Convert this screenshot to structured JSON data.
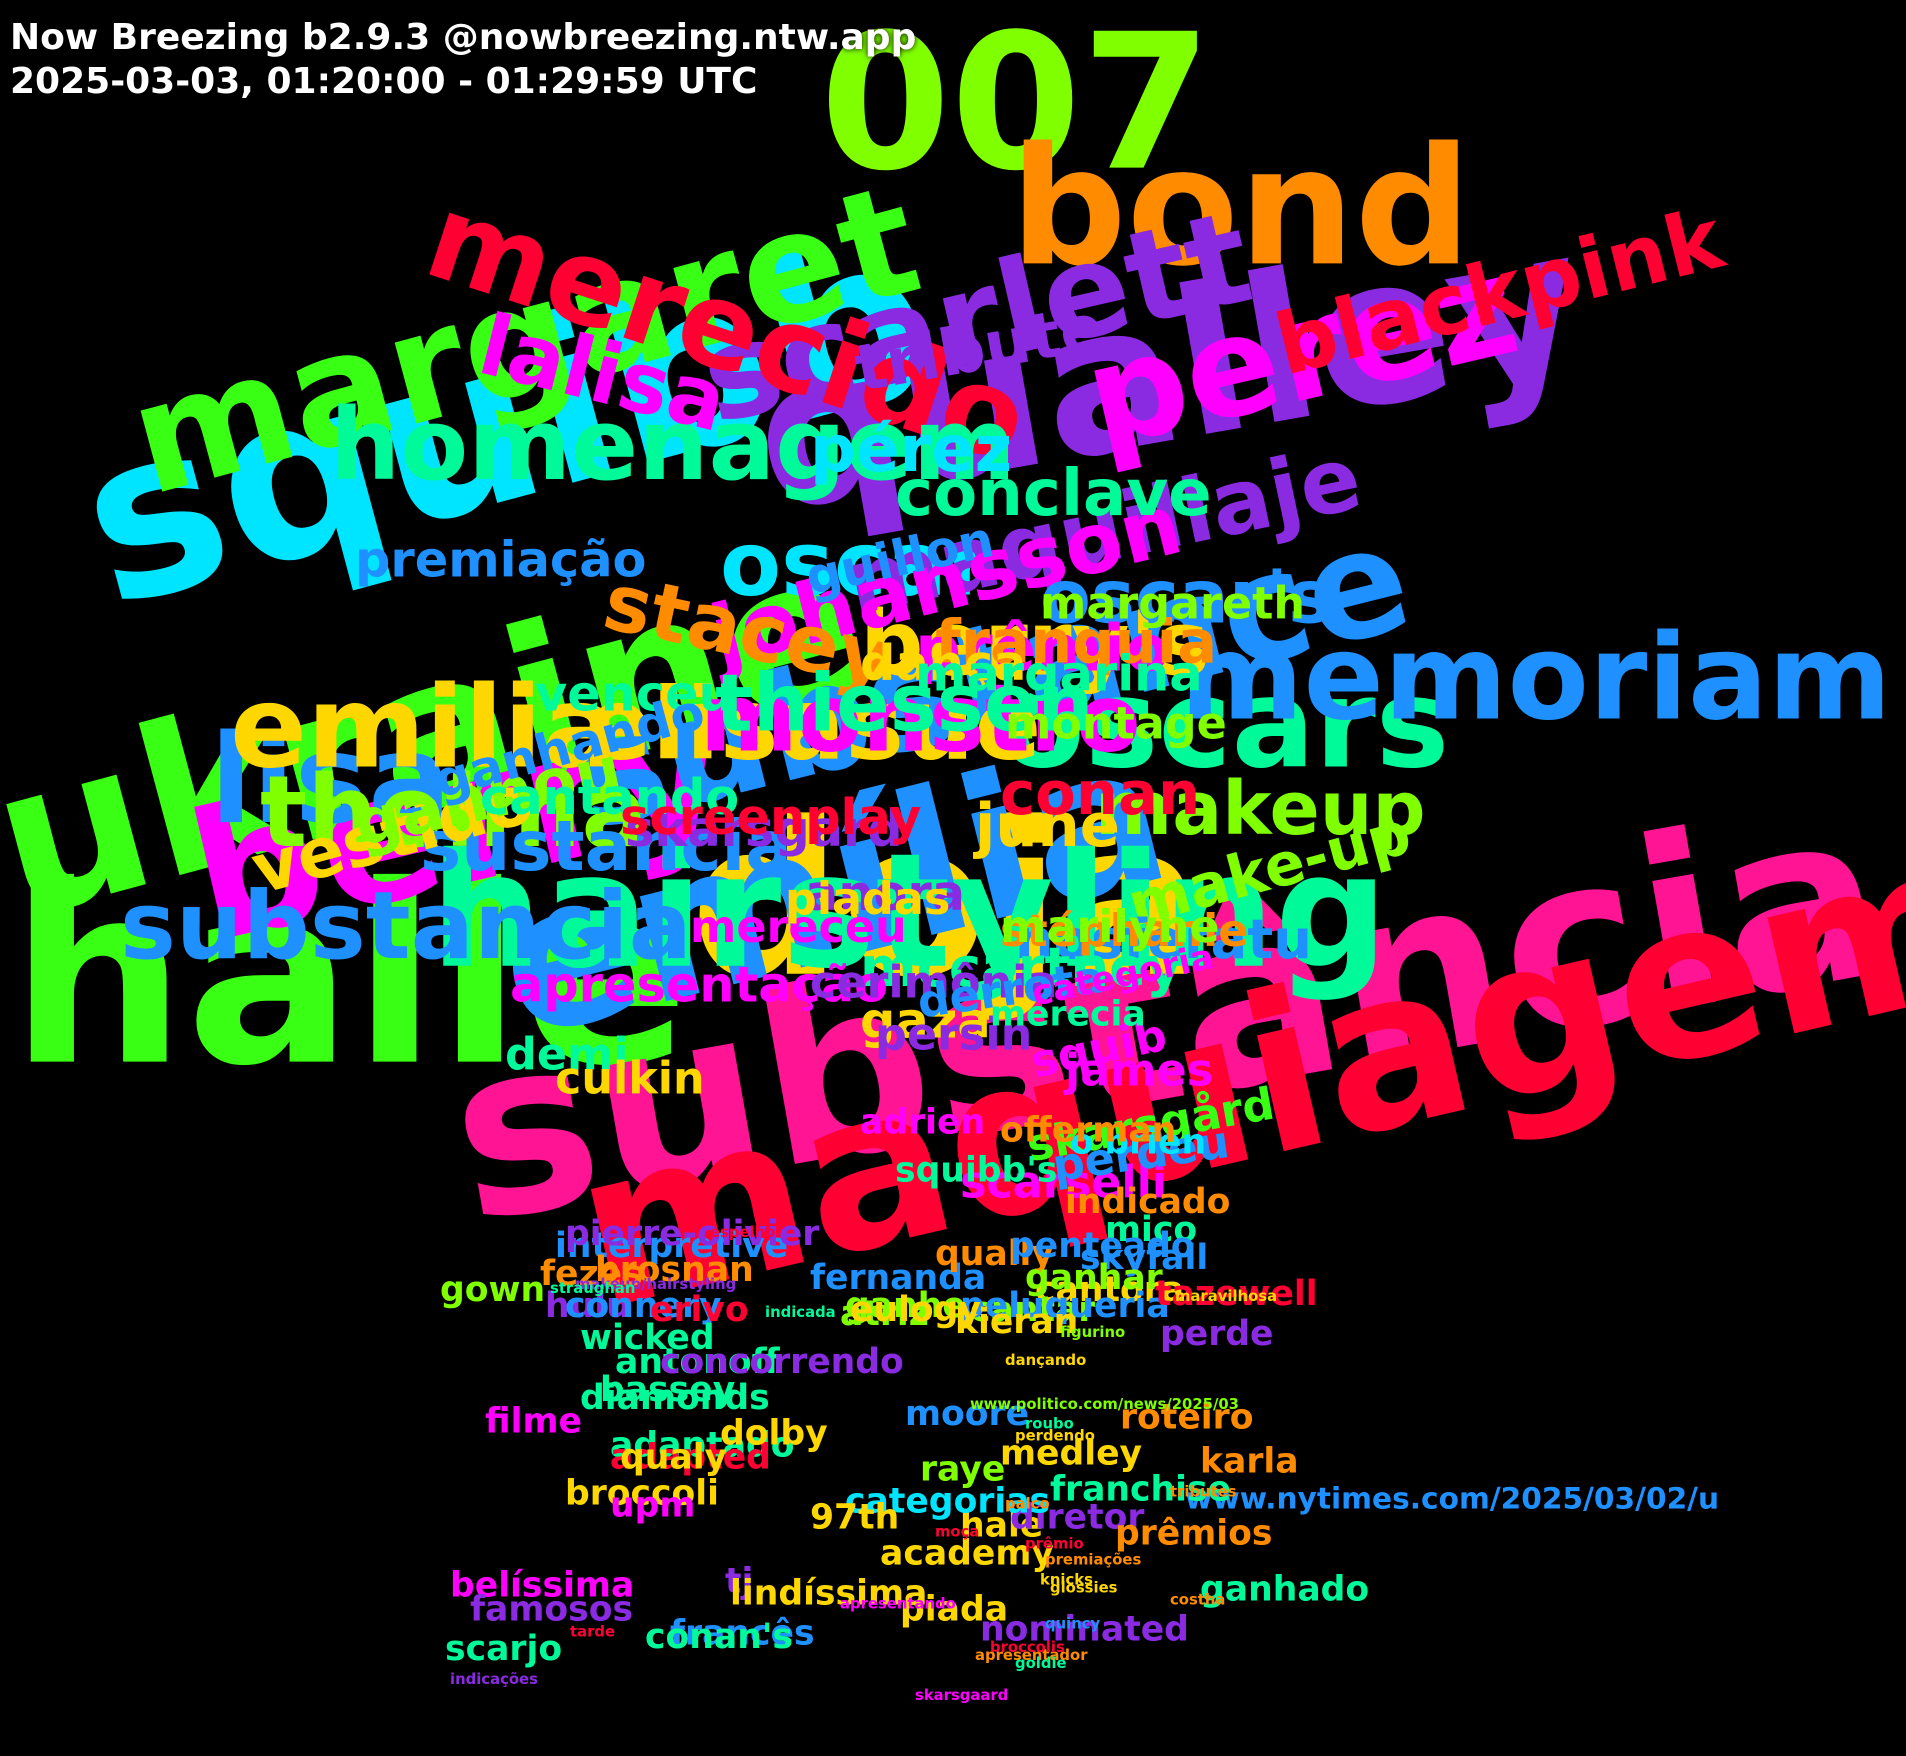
{
  "header": {
    "title": "Now Breezing b2.9.3 @nowbreezing.ntw.app",
    "subtitle": "2025-03-03, 01:20:00 - 01:29:59 UTC"
  },
  "palette": [
    "#39ff14",
    "#00e5ff",
    "#ff1493",
    "#8a2be2",
    "#ff8c00",
    "#ffd700",
    "#00fa9a",
    "#ff0033",
    "#1e90ff",
    "#ff00ff",
    "#7fff00",
    "#20b2aa"
  ],
  "words": [
    {
      "text": "halle",
      "color": "#39ff14",
      "weight": 100
    },
    {
      "text": "substância",
      "color": "#ff1493",
      "weight": 96
    },
    {
      "text": "squibb",
      "color": "#00e5ff",
      "weight": 92
    },
    {
      "text": "maquiagem",
      "color": "#ff0033",
      "weight": 88
    },
    {
      "text": "doja",
      "color": "#ffd700",
      "weight": 86
    },
    {
      "text": "ukraine",
      "color": "#39ff14",
      "weight": 84
    },
    {
      "text": "qualley",
      "color": "#8a2be2",
      "weight": 82
    },
    {
      "text": "emília",
      "color": "#1e90ff",
      "weight": 80
    },
    {
      "text": "007",
      "color": "#7fff00",
      "weight": 76
    },
    {
      "text": "berry",
      "color": "#ff00ff",
      "weight": 72
    },
    {
      "text": "bond",
      "color": "#ff8c00",
      "weight": 66
    },
    {
      "text": "hairstyling",
      "color": "#00fa9a",
      "weight": 64
    },
    {
      "text": "margaret",
      "color": "#39ff14",
      "weight": 62
    },
    {
      "text": "substance",
      "color": "#1e90ff",
      "weight": 60
    },
    {
      "text": "perez",
      "color": "#ff00ff",
      "weight": 56
    },
    {
      "text": "scarlett",
      "color": "#8a2be2",
      "weight": 52
    },
    {
      "text": "lisa",
      "color": "#1e90ff",
      "weight": 50
    },
    {
      "text": "oscars",
      "color": "#00fa9a",
      "weight": 50
    },
    {
      "text": "merecido",
      "color": "#ff0033",
      "weight": 48
    },
    {
      "text": "memoriam",
      "color": "#1e90ff",
      "weight": 48
    },
    {
      "text": "emilia",
      "color": "#ffd700",
      "weight": 46
    },
    {
      "text": "homenagem",
      "color": "#00fa9a",
      "weight": 40
    },
    {
      "text": "elisasue",
      "color": "#ffd700",
      "weight": 40
    },
    {
      "text": "thelma",
      "color": "#7fff00",
      "weight": 40
    },
    {
      "text": "monstro",
      "color": "#ff00ff",
      "weight": 38
    },
    {
      "text": "substancia",
      "color": "#1e90ff",
      "weight": 38
    },
    {
      "text": "berry's",
      "color": "#ffd700",
      "weight": 36
    },
    {
      "text": "oscar",
      "color": "#00e5ff",
      "weight": 36
    },
    {
      "text": "maquillaje",
      "color": "#8a2be2",
      "weight": 36
    },
    {
      "text": "blackpink",
      "color": "#ff0033",
      "weight": 34
    },
    {
      "text": "lalisa",
      "color": "#ff00ff",
      "weight": 34
    },
    {
      "text": "johansson",
      "color": "#ff00ff",
      "weight": 34
    },
    {
      "text": "stacey",
      "color": "#ff8c00",
      "weight": 32
    },
    {
      "text": "thiessen",
      "color": "#00fa9a",
      "weight": 32
    },
    {
      "text": "oscar's",
      "color": "#1e90ff",
      "weight": 30
    },
    {
      "text": "makeup",
      "color": "#7fff00",
      "weight": 30
    },
    {
      "text": "sustancia",
      "color": "#1e90ff",
      "weight": 28
    },
    {
      "text": "vestido",
      "color": "#ffd700",
      "weight": 28
    },
    {
      "text": "tribute",
      "color": "#8a2be2",
      "weight": 26
    },
    {
      "text": "pérez",
      "color": "#00e5ff",
      "weight": 26
    },
    {
      "text": "conclave",
      "color": "#00fa9a",
      "weight": 26
    },
    {
      "text": "prêmio",
      "color": "#ff00ff",
      "weight": 26
    },
    {
      "text": "ganhou",
      "color": "#7fff00",
      "weight": 26
    },
    {
      "text": "franquia",
      "color": "#ff8c00",
      "weight": 24
    },
    {
      "text": "june",
      "color": "#ffd700",
      "weight": 24
    },
    {
      "text": "make-up",
      "color": "#7fff00",
      "weight": 24
    },
    {
      "text": "conan",
      "color": "#ff0033",
      "weight": 24
    },
    {
      "text": "nosferatu",
      "color": "#1e90ff",
      "weight": 22
    },
    {
      "text": "mccartney",
      "color": "#00fa9a",
      "weight": 22
    },
    {
      "text": "anora",
      "color": "#8a2be2",
      "weight": 20
    },
    {
      "text": "premiação",
      "color": "#1e90ff",
      "weight": 20
    },
    {
      "text": "guillon",
      "color": "#1e90ff",
      "weight": 20
    },
    {
      "text": "dança",
      "color": "#ffd700",
      "weight": 20
    },
    {
      "text": "margarina",
      "color": "#00fa9a",
      "weight": 20
    },
    {
      "text": "venceu",
      "color": "#00fa9a",
      "weight": 20
    },
    {
      "text": "ganhando",
      "color": "#1e90ff",
      "weight": 20
    },
    {
      "text": "skarsgard",
      "color": "#8a2be2",
      "weight": 20
    },
    {
      "text": "gaza",
      "color": "#ffd700",
      "weight": 20
    },
    {
      "text": "cantando",
      "color": "#00fa9a",
      "weight": 20
    },
    {
      "text": "screenplay",
      "color": "#ff0033",
      "weight": 20
    },
    {
      "text": "apresentação",
      "color": "#ff00ff",
      "weight": 20
    },
    {
      "text": "squib",
      "color": "#ff00ff",
      "weight": 18
    },
    {
      "text": "margareth",
      "color": "#7fff00",
      "weight": 18
    },
    {
      "text": "montage",
      "color": "#7fff00",
      "weight": 18
    },
    {
      "text": "stéphanie",
      "color": "#ff8c00",
      "weight": 18
    },
    {
      "text": "skarsgård",
      "color": "#39ff14",
      "weight": 18
    },
    {
      "text": "mereceu",
      "color": "#ff00ff",
      "weight": 18
    },
    {
      "text": "scarselli",
      "color": "#ff00ff",
      "weight": 18
    },
    {
      "text": "cerimônia",
      "color": "#8a2be2",
      "weight": 18
    },
    {
      "text": "piadas",
      "color": "#ffd700",
      "weight": 18
    },
    {
      "text": "persin",
      "color": "#8a2be2",
      "weight": 18
    },
    {
      "text": "derrota",
      "color": "#1e90ff",
      "weight": 18
    },
    {
      "text": "marilyne",
      "color": "#7fff00",
      "weight": 18
    },
    {
      "text": "demi",
      "color": "#00fa9a",
      "weight": 18
    },
    {
      "text": "perdeu",
      "color": "#1e90ff",
      "weight": 18
    },
    {
      "text": "james",
      "color": "#ff00ff",
      "weight": 18
    },
    {
      "text": "culkin",
      "color": "#ffd700",
      "weight": 18
    },
    {
      "text": "squibb's",
      "color": "#00fa9a",
      "weight": 14
    },
    {
      "text": "o'brien",
      "color": "#00e5ff",
      "weight": 14
    },
    {
      "text": "fernanda",
      "color": "#1e90ff",
      "weight": 14
    },
    {
      "text": "categoria",
      "color": "#ff00ff",
      "weight": 14
    },
    {
      "text": "mico",
      "color": "#00fa9a",
      "weight": 14
    },
    {
      "text": "merecia",
      "color": "#00fa9a",
      "weight": 14
    },
    {
      "text": "gown",
      "color": "#7fff00",
      "weight": 14
    },
    {
      "text": "interpretive",
      "color": "#1e90ff",
      "weight": 14
    },
    {
      "text": "pierre-olivier",
      "color": "#8a2be2",
      "weight": 14
    },
    {
      "text": "fezes",
      "color": "#ff8c00",
      "weight": 14
    },
    {
      "text": "hulu",
      "color": "#8a2be2",
      "weight": 14
    },
    {
      "text": "adrien",
      "color": "#ff00ff",
      "weight": 14
    },
    {
      "text": "qually",
      "color": "#ff8c00",
      "weight": 14
    },
    {
      "text": "penteado",
      "color": "#1e90ff",
      "weight": 14
    },
    {
      "text": "offerman",
      "color": "#ff8c00",
      "weight": 14
    },
    {
      "text": "perde",
      "color": "#8a2be2",
      "weight": 14
    },
    {
      "text": "indicado",
      "color": "#ff8c00",
      "weight": 14
    },
    {
      "text": "cantora",
      "color": "#ffd700",
      "weight": 14
    },
    {
      "text": "connery",
      "color": "#1e90ff",
      "weight": 14
    },
    {
      "text": "erivo",
      "color": "#ff0033",
      "weight": 14
    },
    {
      "text": "brosnan",
      "color": "#ff8c00",
      "weight": 14
    },
    {
      "text": "antonoff",
      "color": "#00fa9a",
      "weight": 14
    },
    {
      "text": "skyfall",
      "color": "#1e90ff",
      "weight": 14
    },
    {
      "text": "cantar",
      "color": "#7fff00",
      "weight": 14
    },
    {
      "text": "atriz",
      "color": "#7fff00",
      "weight": 14
    },
    {
      "text": "bassey",
      "color": "#00fa9a",
      "weight": 14
    },
    {
      "text": "peluqueria",
      "color": "#1e90ff",
      "weight": 14
    },
    {
      "text": "tazewell",
      "color": "#ff0033",
      "weight": 14
    },
    {
      "text": "concorrendo",
      "color": "#8a2be2",
      "weight": 14
    },
    {
      "text": "wicked",
      "color": "#00fa9a",
      "weight": 14
    },
    {
      "text": "diamonds",
      "color": "#00fa9a",
      "weight": 14
    },
    {
      "text": "ganhar",
      "color": "#7fff00",
      "weight": 14
    },
    {
      "text": "adaptado",
      "color": "#00fa9a",
      "weight": 14
    },
    {
      "text": "adapted",
      "color": "#ff0033",
      "weight": 14
    },
    {
      "text": "broccoli",
      "color": "#ffd700",
      "weight": 14
    },
    {
      "text": "ganhe",
      "color": "#7fff00",
      "weight": 14
    },
    {
      "text": "moore",
      "color": "#1e90ff",
      "weight": 14
    },
    {
      "text": "upm",
      "color": "#ff00ff",
      "weight": 14
    },
    {
      "text": "kieran",
      "color": "#ffd700",
      "weight": 14
    },
    {
      "text": "eulogy",
      "color": "#ffd700",
      "weight": 14
    },
    {
      "text": "dolby",
      "color": "#ffd700",
      "weight": 14
    },
    {
      "text": "qualy",
      "color": "#ffd700",
      "weight": 14
    },
    {
      "text": "hale",
      "color": "#ffd700",
      "weight": 14
    },
    {
      "text": "roteiro",
      "color": "#ff8c00",
      "weight": 14
    },
    {
      "text": "filme",
      "color": "#ff00ff",
      "weight": 14
    },
    {
      "text": "raye",
      "color": "#7fff00",
      "weight": 14
    },
    {
      "text": "medley",
      "color": "#ffd700",
      "weight": 14
    },
    {
      "text": "karla",
      "color": "#ff8c00",
      "weight": 14
    },
    {
      "text": "diretor",
      "color": "#8a2be2",
      "weight": 14
    },
    {
      "text": "www.nytimes.com/2025/03/02/u",
      "color": "#1e90ff",
      "weight": 12
    },
    {
      "text": "franchise",
      "color": "#00fa9a",
      "weight": 14
    },
    {
      "text": "prêmios",
      "color": "#ff8c00",
      "weight": 14
    },
    {
      "text": "categorias",
      "color": "#00e5ff",
      "weight": 14
    },
    {
      "text": "97th",
      "color": "#ffd700",
      "weight": 14
    },
    {
      "text": "academy",
      "color": "#ffd700",
      "weight": 14
    },
    {
      "text": "tj",
      "color": "#8a2be2",
      "weight": 14
    },
    {
      "text": "lindíssima",
      "color": "#ffd700",
      "weight": 14
    },
    {
      "text": "francês",
      "color": "#1e90ff",
      "weight": 14
    },
    {
      "text": "ganhado",
      "color": "#00fa9a",
      "weight": 14
    },
    {
      "text": "piada",
      "color": "#ffd700",
      "weight": 14
    },
    {
      "text": "belíssima",
      "color": "#ff00ff",
      "weight": 14
    },
    {
      "text": "famosos",
      "color": "#8a2be2",
      "weight": 14
    },
    {
      "text": "conan's",
      "color": "#00fa9a",
      "weight": 14
    },
    {
      "text": "nominated",
      "color": "#8a2be2",
      "weight": 14
    },
    {
      "text": "scarjo",
      "color": "#00fa9a",
      "weight": 14
    },
    {
      "text": "apresentador",
      "color": "#ff8c00",
      "weight": 6
    },
    {
      "text": "glossies",
      "color": "#ffd700",
      "weight": 6
    },
    {
      "text": "tarde",
      "color": "#ff0033",
      "weight": 6
    },
    {
      "text": "premiações",
      "color": "#ff8c00",
      "weight": 6
    },
    {
      "text": "indicações",
      "color": "#8a2be2",
      "weight": 6
    },
    {
      "text": "skarsgaard",
      "color": "#ff00ff",
      "weight": 6
    },
    {
      "text": "espelho",
      "color": "#ff0033",
      "weight": 6
    },
    {
      "text": "makeup/hairstyling",
      "color": "#8a2be2",
      "weight": 6
    },
    {
      "text": "straughan",
      "color": "#00fa9a",
      "weight": 6
    },
    {
      "text": "maravilhosa",
      "color": "#ffd700",
      "weight": 6
    },
    {
      "text": "figurino",
      "color": "#7fff00",
      "weight": 6
    },
    {
      "text": "indicada",
      "color": "#00fa9a",
      "weight": 6
    },
    {
      "text": "dançando",
      "color": "#ffd700",
      "weight": 6
    },
    {
      "text": "www.politico.com/news/2025/03",
      "color": "#7fff00",
      "weight": 6
    },
    {
      "text": "roubo",
      "color": "#00fa9a",
      "weight": 6
    },
    {
      "text": "perdendo",
      "color": "#ffd700",
      "weight": 6
    },
    {
      "text": "tributes",
      "color": "#ff8c00",
      "weight": 6
    },
    {
      "text": "palco",
      "color": "#ff8c00",
      "weight": 6
    },
    {
      "text": "moça",
      "color": "#ff0033",
      "weight": 6
    },
    {
      "text": "prêmio",
      "color": "#ff0033",
      "weight": 6
    },
    {
      "text": "knicks",
      "color": "#ffd700",
      "weight": 6
    },
    {
      "text": "costha",
      "color": "#ff8c00",
      "weight": 6
    },
    {
      "text": "apresentando",
      "color": "#ff00ff",
      "weight": 6
    },
    {
      "text": "quincy",
      "color": "#1e90ff",
      "weight": 6
    },
    {
      "text": "broccolis",
      "color": "#ff0033",
      "weight": 6
    },
    {
      "text": "goldie",
      "color": "#00fa9a",
      "weight": 6
    }
  ]
}
